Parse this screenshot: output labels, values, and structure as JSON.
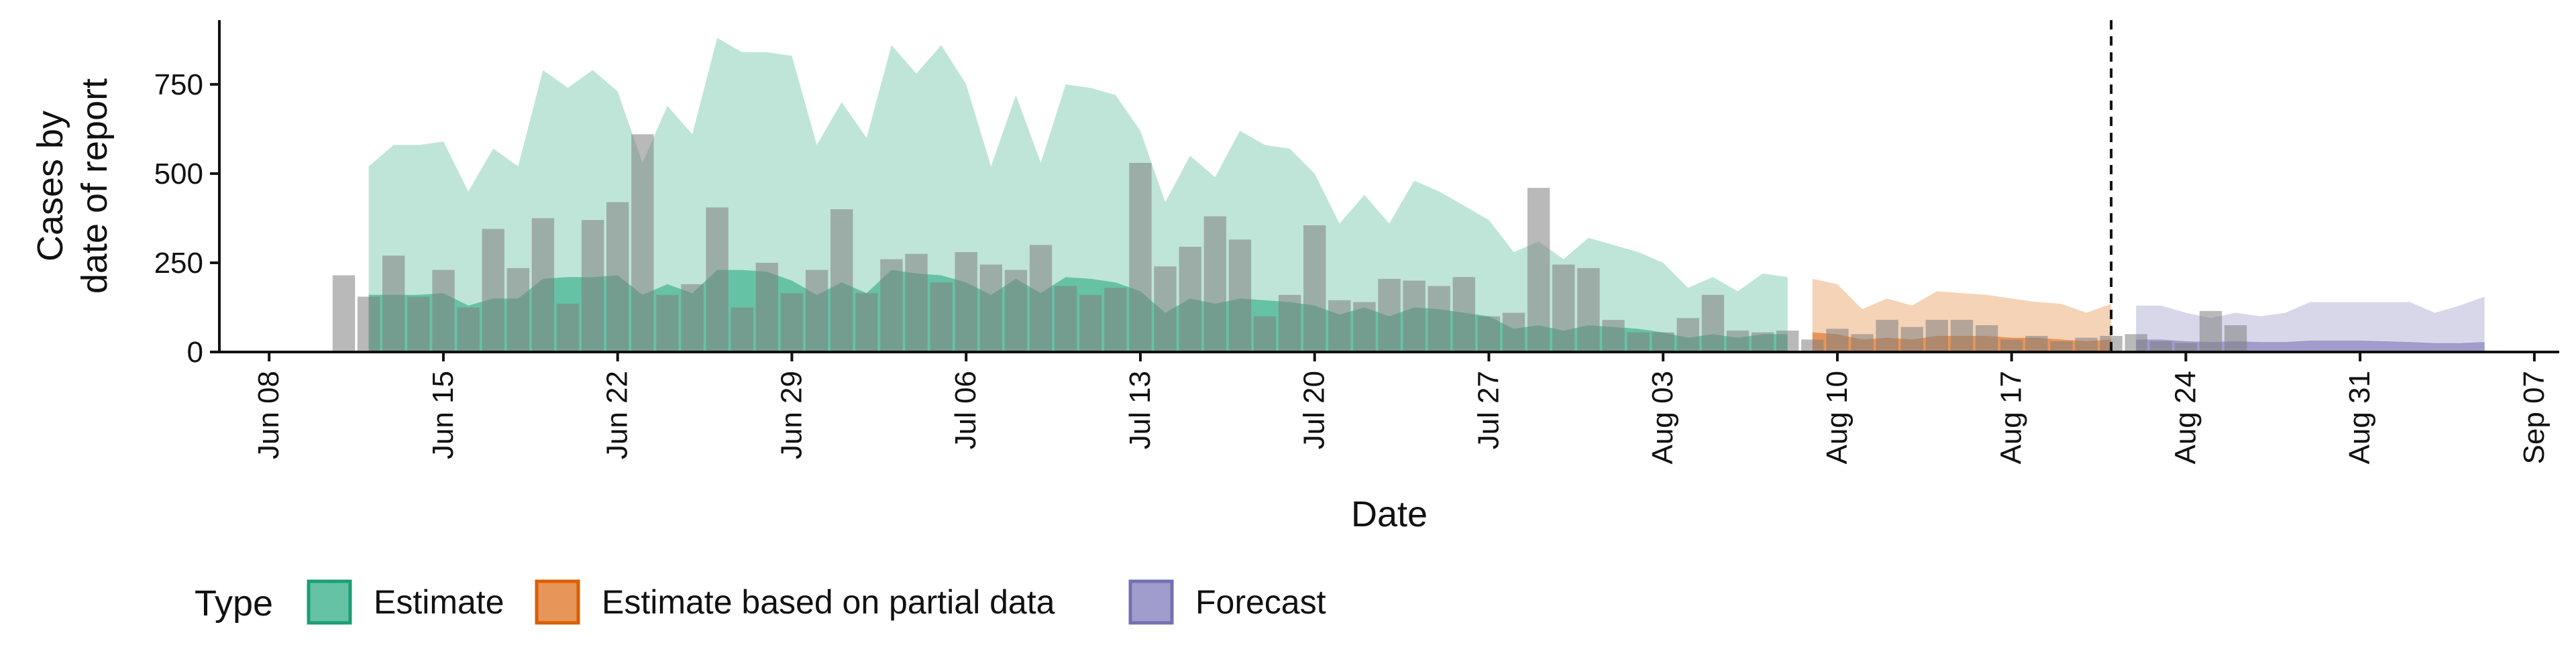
{
  "chart_data": {
    "type": "area",
    "xlabel": "Date",
    "ylabel_lines": [
      "Cases by",
      "date of report"
    ],
    "ylim": [
      0,
      930
    ],
    "yticks": [
      0,
      250,
      500,
      750
    ],
    "xlim": [
      "2020-06-06",
      "2020-09-08"
    ],
    "xticks": [
      {
        "date": "2020-06-08",
        "label": "Jun 08"
      },
      {
        "date": "2020-06-15",
        "label": "Jun 15"
      },
      {
        "date": "2020-06-22",
        "label": "Jun 22"
      },
      {
        "date": "2020-06-29",
        "label": "Jun 29"
      },
      {
        "date": "2020-07-06",
        "label": "Jul 06"
      },
      {
        "date": "2020-07-13",
        "label": "Jul 13"
      },
      {
        "date": "2020-07-20",
        "label": "Jul 20"
      },
      {
        "date": "2020-07-27",
        "label": "Jul 27"
      },
      {
        "date": "2020-08-03",
        "label": "Aug 03"
      },
      {
        "date": "2020-08-10",
        "label": "Aug 10"
      },
      {
        "date": "2020-08-17",
        "label": "Aug 17"
      },
      {
        "date": "2020-08-24",
        "label": "Aug 24"
      },
      {
        "date": "2020-08-31",
        "label": "Aug 31"
      },
      {
        "date": "2020-09-07",
        "label": "Sep 07"
      }
    ],
    "vline_date": "2020-08-21",
    "legend": {
      "title": "Type",
      "position": "bottom",
      "entries": [
        {
          "label": "Estimate",
          "fill": "#66c2a5",
          "border": "#1b9e77"
        },
        {
          "label": "Estimate based on partial data",
          "fill": "#e8955a",
          "border": "#d95f02"
        },
        {
          "label": "Forecast",
          "fill": "#a09ccb",
          "border": "#7570b3"
        }
      ]
    },
    "colors": {
      "estimate_outer": "#bfe5d8",
      "estimate_inner": "#66c2a5",
      "partial_outer": "#f4d3b7",
      "partial_inner": "#e8955a",
      "forecast_outer": "#d8d7ea",
      "forecast_inner": "#a09ccb",
      "bars": "#7f7f7f"
    },
    "observed_start": "2020-06-11",
    "observed": [
      215,
      155,
      270,
      155,
      230,
      125,
      345,
      235,
      375,
      135,
      370,
      420,
      610,
      160,
      190,
      405,
      125,
      250,
      165,
      230,
      400,
      165,
      260,
      275,
      195,
      280,
      245,
      230,
      300,
      185,
      160,
      180,
      530,
      240,
      295,
      380,
      315,
      100,
      160,
      355,
      145,
      140,
      205,
      200,
      185,
      210,
      100,
      110,
      460,
      245,
      235,
      90,
      55,
      55,
      95,
      160,
      60,
      55,
      60,
      35,
      65,
      50,
      90,
      70,
      90,
      90,
      75,
      35,
      45,
      30,
      40,
      45,
      50,
      30,
      25,
      115,
      75
    ],
    "estimate": {
      "start": "2020-06-12",
      "upper": [
        520,
        580,
        580,
        590,
        450,
        570,
        520,
        790,
        740,
        790,
        730,
        530,
        690,
        610,
        880,
        840,
        840,
        830,
        580,
        700,
        600,
        860,
        780,
        860,
        750,
        520,
        720,
        530,
        750,
        740,
        720,
        620,
        420,
        550,
        490,
        620,
        580,
        570,
        500,
        360,
        440,
        360,
        480,
        450,
        410,
        370,
        280,
        310,
        260,
        320,
        300,
        280,
        250,
        180,
        210,
        170,
        220,
        210
      ],
      "lower": [
        160,
        160,
        160,
        165,
        130,
        150,
        150,
        205,
        210,
        210,
        215,
        160,
        190,
        165,
        230,
        230,
        225,
        200,
        160,
        195,
        165,
        230,
        220,
        215,
        195,
        160,
        205,
        165,
        210,
        205,
        195,
        170,
        110,
        150,
        135,
        150,
        145,
        140,
        130,
        105,
        125,
        100,
        125,
        120,
        110,
        100,
        65,
        75,
        60,
        75,
        70,
        65,
        55,
        40,
        50,
        40,
        50,
        50
      ]
    },
    "partial": {
      "start": "2020-08-09",
      "upper": [
        205,
        190,
        120,
        150,
        130,
        170,
        165,
        160,
        150,
        140,
        135,
        110,
        135
      ],
      "lower": [
        55,
        50,
        35,
        40,
        35,
        45,
        45,
        45,
        40,
        40,
        35,
        30,
        35
      ]
    },
    "forecast": {
      "start": "2020-08-22",
      "upper": [
        130,
        130,
        110,
        95,
        110,
        100,
        110,
        140,
        140,
        140,
        140,
        140,
        110,
        130,
        155
      ],
      "lower": [
        35,
        35,
        30,
        28,
        30,
        28,
        28,
        32,
        32,
        32,
        30,
        28,
        25,
        25,
        28
      ]
    }
  }
}
